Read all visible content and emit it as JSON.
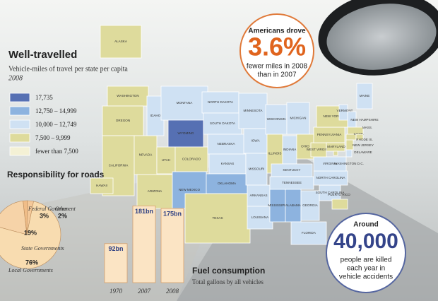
{
  "chart_data": [
    {
      "type": "map",
      "title": "Well-travelled",
      "subtitle": "Vehicle-miles of travel per state per capita",
      "year": "2008",
      "legend": [
        {
          "label": "17,735",
          "color": "#5670b3"
        },
        {
          "label": "12,750 – 14,999",
          "color": "#8db3df"
        },
        {
          "label": "10,000 – 12,749",
          "color": "#cfe1f3"
        },
        {
          "label": "7,500 – 9,999",
          "color": "#dedb9c"
        },
        {
          "label": "fewer than 7,500",
          "color": "#f4f1d5"
        }
      ],
      "regions": [
        {
          "name": "WASHINGTON",
          "color": "#dedb9c"
        },
        {
          "name": "OREGON",
          "color": "#dedb9c"
        },
        {
          "name": "CALIFORNIA",
          "color": "#dedb9c"
        },
        {
          "name": "NEVADA",
          "color": "#dedb9c"
        },
        {
          "name": "IDAHO",
          "color": "#cfe1f3"
        },
        {
          "name": "MONTANA",
          "color": "#cfe1f3"
        },
        {
          "name": "WYOMING",
          "color": "#5670b3"
        },
        {
          "name": "UTAH",
          "color": "#dedb9c"
        },
        {
          "name": "COLORADO",
          "color": "#dedb9c"
        },
        {
          "name": "ARIZONA",
          "color": "#dedb9c"
        },
        {
          "name": "NEW MEXICO",
          "color": "#8db3df"
        },
        {
          "name": "NORTH DAKOTA",
          "color": "#cfe1f3"
        },
        {
          "name": "SOUTH DAKOTA",
          "color": "#cfe1f3"
        },
        {
          "name": "NEBRASKA",
          "color": "#cfe1f3"
        },
        {
          "name": "KANSAS",
          "color": "#cfe1f3"
        },
        {
          "name": "OKLAHOMA",
          "color": "#8db3df"
        },
        {
          "name": "TEXAS",
          "color": "#dedb9c"
        },
        {
          "name": "MINNESOTA",
          "color": "#cfe1f3"
        },
        {
          "name": "IOWA",
          "color": "#cfe1f3"
        },
        {
          "name": "MISSOURI",
          "color": "#cfe1f3"
        },
        {
          "name": "ARKANSAS",
          "color": "#cfe1f3"
        },
        {
          "name": "LOUISIANA",
          "color": "#cfe1f3"
        },
        {
          "name": "WISCONSIN",
          "color": "#cfe1f3"
        },
        {
          "name": "ILLINOIS",
          "color": "#dedb9c"
        },
        {
          "name": "MICHIGAN",
          "color": "#cfe1f3"
        },
        {
          "name": "INDIANA",
          "color": "#cfe1f3"
        },
        {
          "name": "OHIO",
          "color": "#dedb9c"
        },
        {
          "name": "KENTUCKY",
          "color": "#cfe1f3"
        },
        {
          "name": "TENNESSEE",
          "color": "#cfe1f3"
        },
        {
          "name": "MISSISSIPPI",
          "color": "#8db3df"
        },
        {
          "name": "ALABAMA",
          "color": "#8db3df"
        },
        {
          "name": "GEORGIA",
          "color": "#cfe1f3"
        },
        {
          "name": "FLORIDA",
          "color": "#cfe1f3"
        },
        {
          "name": "SOUTH CAROLINA",
          "color": "#cfe1f3"
        },
        {
          "name": "NORTH CAROLINA",
          "color": "#cfe1f3"
        },
        {
          "name": "VIRGINIA",
          "color": "#cfe1f3"
        },
        {
          "name": "WEST VIRGINIA",
          "color": "#dedb9c"
        },
        {
          "name": "PENNSYLVANIA",
          "color": "#dedb9c"
        },
        {
          "name": "NEW YORK",
          "color": "#dedb9c"
        },
        {
          "name": "VERMONT",
          "color": "#cfe1f3"
        },
        {
          "name": "MAINE",
          "color": "#cfe1f3"
        },
        {
          "name": "NEW HAMPSHIRE",
          "color": "#cfe1f3"
        },
        {
          "name": "MASS.",
          "color": "#dedb9c"
        },
        {
          "name": "CONN.",
          "color": "#dedb9c"
        },
        {
          "name": "RHODE IS.",
          "color": "#dedb9c"
        },
        {
          "name": "NEW JERSEY",
          "color": "#dedb9c"
        },
        {
          "name": "DELAWARE",
          "color": "#cfe1f3"
        },
        {
          "name": "MARYLAND",
          "color": "#dedb9c"
        },
        {
          "name": "WASHINGTON D.C.",
          "color": "#dedb9c"
        },
        {
          "name": "ALASKA",
          "color": "#dedb9c"
        },
        {
          "name": "HAWAII",
          "color": "#dedb9c"
        },
        {
          "name": "PUERTO RICO",
          "color": "#dedb9c"
        }
      ]
    },
    {
      "type": "pie",
      "title": "Responsibility for roads",
      "categories": [
        "Federal Government",
        "Other",
        "State Governments",
        "Local Governments"
      ],
      "values": [
        3,
        2,
        19,
        76
      ],
      "value_labels": [
        "3%",
        "2%",
        "19%",
        "76%"
      ],
      "color": "#f8dcb0"
    },
    {
      "type": "bar",
      "title": "Fuel consumption",
      "subtitle": "Total gallons by all vehicles",
      "categories": [
        "1970",
        "2007",
        "2008"
      ],
      "values": [
        92,
        181,
        175
      ],
      "value_labels": [
        "92bn",
        "181bn",
        "175bn"
      ],
      "color": "#fbe4c4"
    }
  ],
  "callouts": [
    {
      "intro": "Americans drove",
      "figure": "3.6%",
      "text": [
        "fewer miles in 2008",
        "than in 2007"
      ]
    },
    {
      "intro": "Around",
      "figure": "40,000",
      "text": [
        "people are killed",
        "each year in",
        "vehicle accidents"
      ]
    }
  ]
}
